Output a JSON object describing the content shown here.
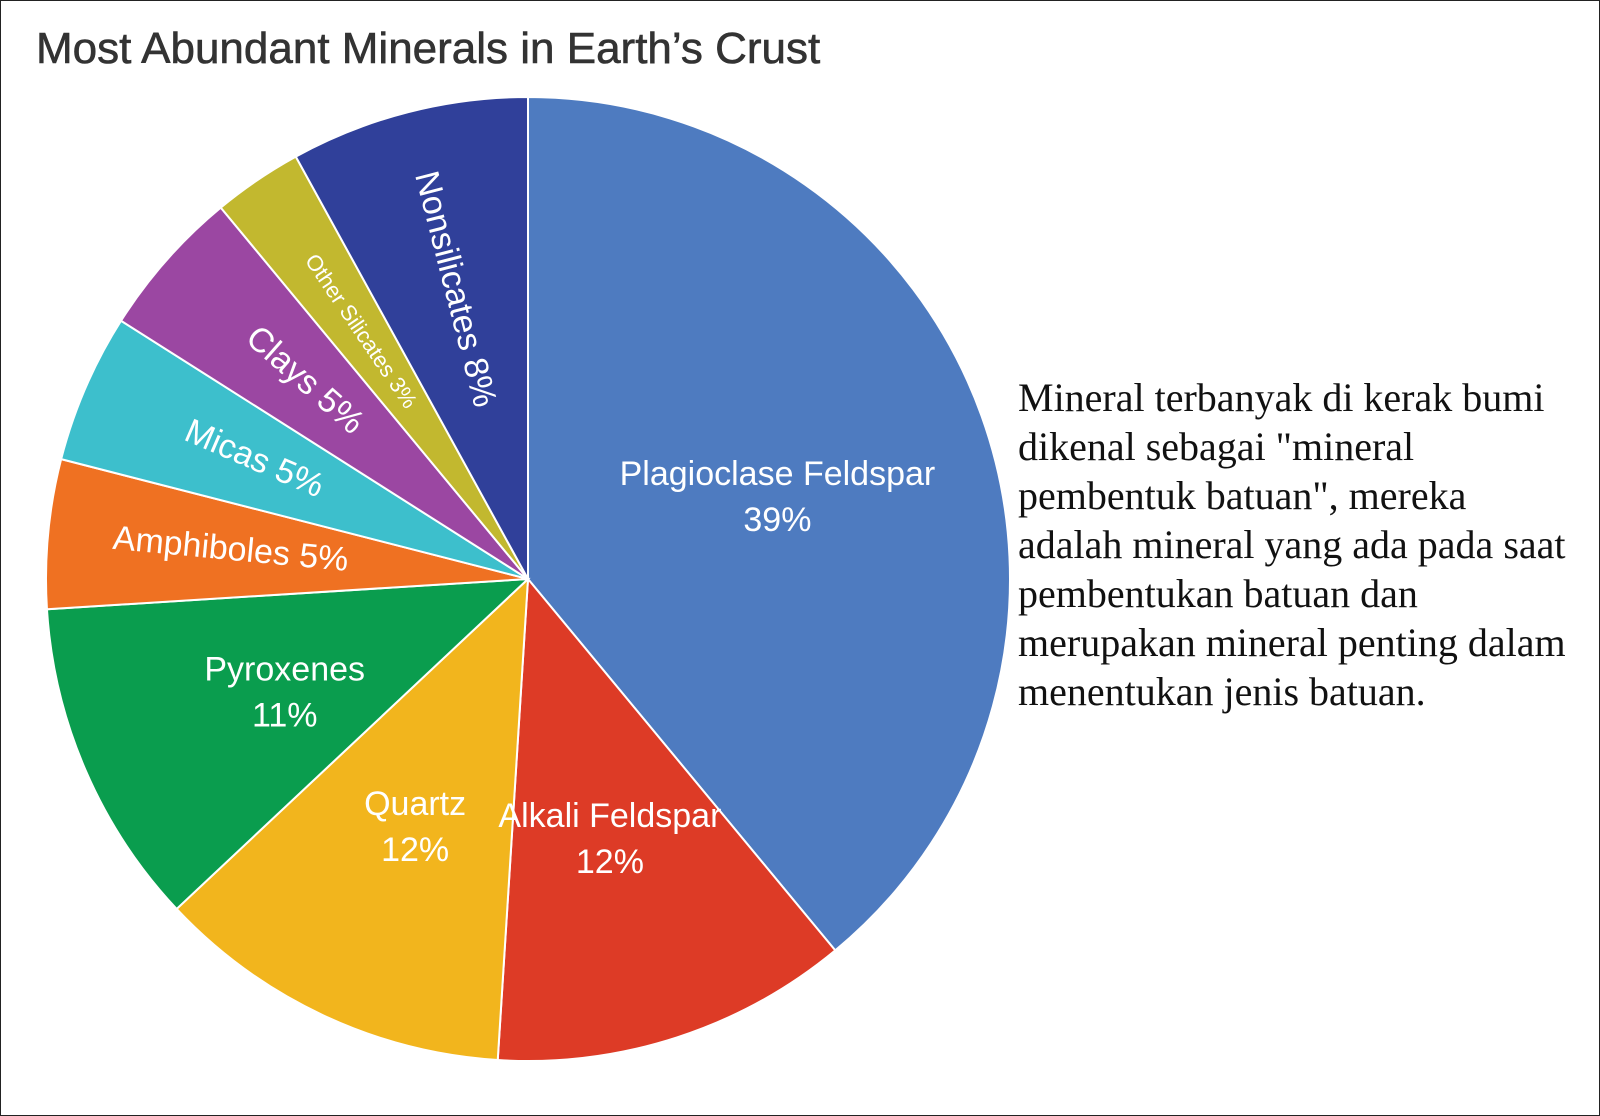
{
  "chart_data": {
    "type": "pie",
    "title": "Most Abundant Minerals in Earth’s Crust",
    "categories": [
      "Plagioclase Feldspar",
      "Alkali Feldspar",
      "Quartz",
      "Pyroxenes",
      "Amphiboles",
      "Micas",
      "Clays",
      "Other Silicates",
      "Nonsilicates"
    ],
    "values": [
      39,
      12,
      12,
      11,
      5,
      5,
      5,
      3,
      8
    ],
    "value_labels": [
      "39%",
      "12%",
      "12%",
      "11%",
      "5%",
      "5%",
      "5%",
      "3%",
      "8%"
    ],
    "colors": [
      "#4e7bc0",
      "#dd3b26",
      "#f2b51d",
      "#0a9d4e",
      "#ef7122",
      "#3dbfcc",
      "#9b47a2",
      "#c2b82f",
      "#30409a"
    ]
  },
  "note": "Mineral terbanyak di kerak bumi dikenal sebagai \"mineral pembentuk batuan\", mereka adalah mineral yang ada pada saat pembentukan batuan dan merupakan mineral penting dalam menentukan jenis batuan."
}
